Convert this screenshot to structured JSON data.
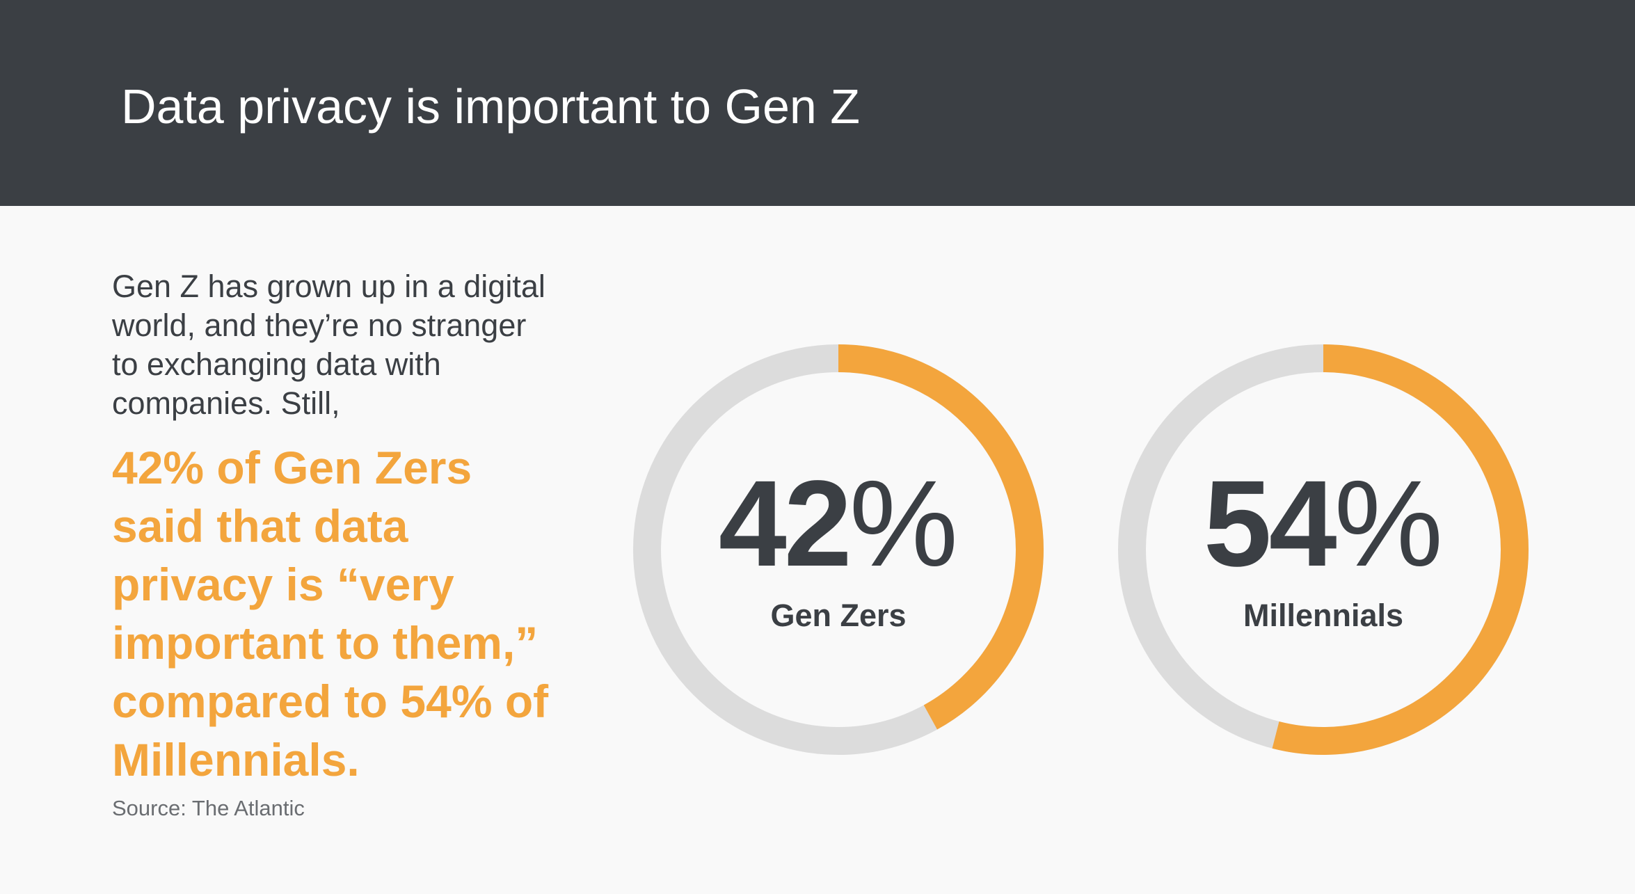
{
  "header": {
    "title": "Data privacy is important to Gen Z"
  },
  "intro_text": "Gen Z has grown up in a digital world, and they’re no stranger to exchanging data with companies. Still,",
  "highlight_text": "42% of Gen Zers said that data privacy is “very important to them,” compared to 54% of Millennials.",
  "source": "Source: The Atlantic",
  "colors": {
    "header_background": "#3b3f44",
    "accent": "#f3a53d",
    "ring_track": "#dcdcdc",
    "text_dark": "#3b3f44",
    "page_background": "#f9f9f9"
  },
  "chart_data": [
    {
      "type": "pie",
      "style": "donut",
      "label": "Gen Zers",
      "value": 42,
      "value_text": "42",
      "unit": "%",
      "max": 100
    },
    {
      "type": "pie",
      "style": "donut",
      "label": "Millennials",
      "value": 54,
      "value_text": "54",
      "unit": "%",
      "max": 100
    }
  ]
}
